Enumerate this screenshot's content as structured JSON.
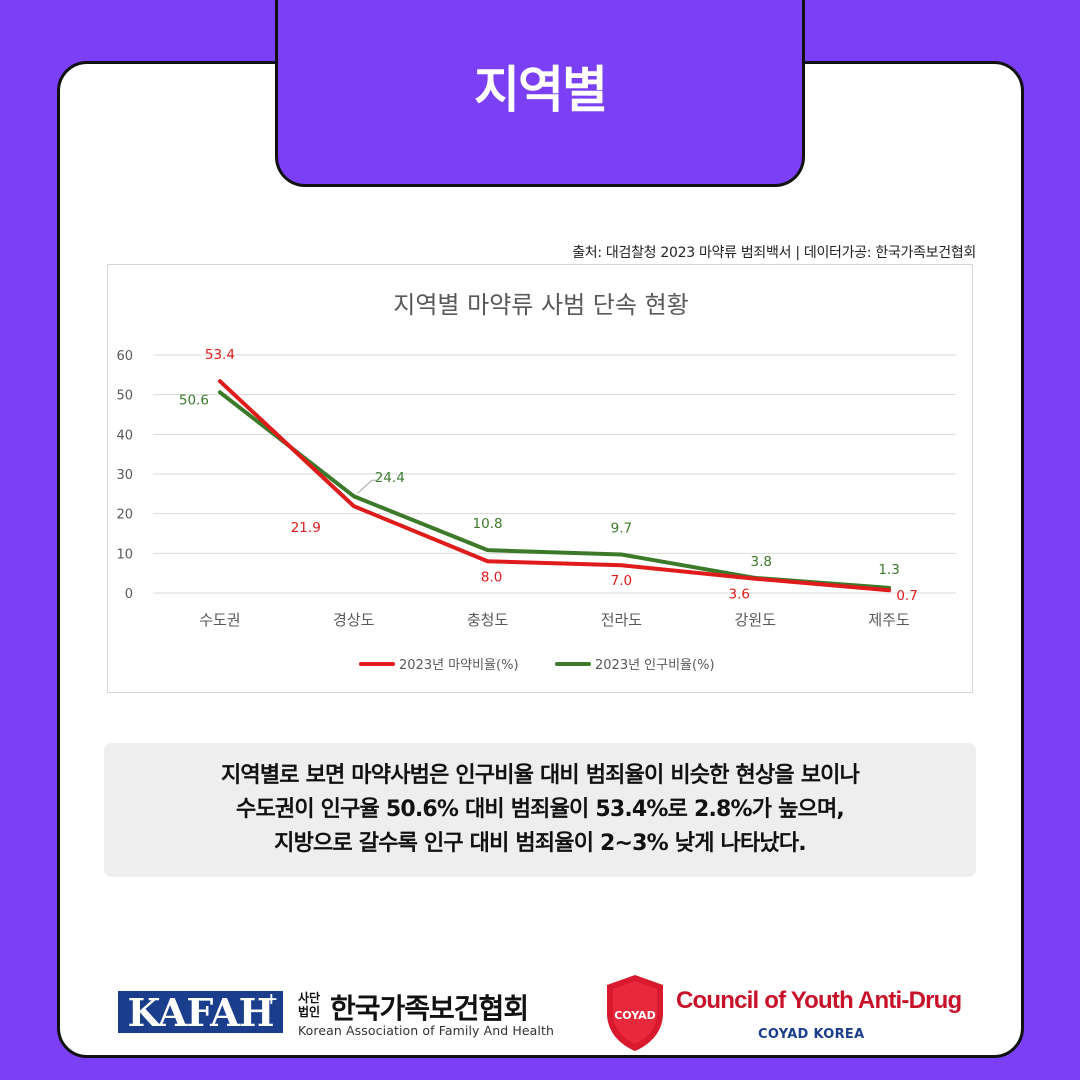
{
  "header": {
    "title": "지역별"
  },
  "source": "출처: 대검찰청 2023 마약류 범죄백서 | 데이터가공: 한국가족보건협회",
  "chart_data": {
    "type": "line",
    "title": "지역별 마약류 사범 단속 현황",
    "categories": [
      "수도권",
      "경상도",
      "충청도",
      "전라도",
      "강원도",
      "제주도"
    ],
    "ylim": [
      0,
      60
    ],
    "yticks": [
      0,
      10,
      20,
      30,
      40,
      50,
      60
    ],
    "grid": true,
    "legend_position": "bottom",
    "series": [
      {
        "name": "2023년 마약비율(%)",
        "color": "#e01b1b",
        "values": [
          53.4,
          21.9,
          8.0,
          7.0,
          3.6,
          0.7
        ],
        "labels": [
          "53.4",
          "21.9",
          "8.0",
          "7.0",
          "3.6",
          "0.7"
        ]
      },
      {
        "name": "2023년 인구비율(%)",
        "color": "#3c7a2a",
        "values": [
          50.6,
          24.4,
          10.8,
          9.7,
          3.8,
          1.3
        ],
        "labels": [
          "50.6",
          "24.4",
          "10.8",
          "9.7",
          "3.8",
          "1.3"
        ]
      }
    ]
  },
  "summary": {
    "line1": "지역별로 보면 마약사범은 인구비율 대비 범죄율이 비슷한 현상을 보이나",
    "line2": "수도권이 인구율 50.6% 대비 범죄율이 53.4%로 2.8%가 높으며,",
    "line3": "지방으로 갈수록 인구 대비 범죄율이 2~3% 낮게 나타났다."
  },
  "footer": {
    "kafah_logo": "KAFAH",
    "kafah_plus": "+",
    "kafah_small": "사단법인",
    "kafah_name": "한국가족보건협회",
    "kafah_en": "Korean Association of Family And Health",
    "coyad_name": "Council of Youth Anti-Drug",
    "coyad_sub": "COYAD KOREA"
  }
}
